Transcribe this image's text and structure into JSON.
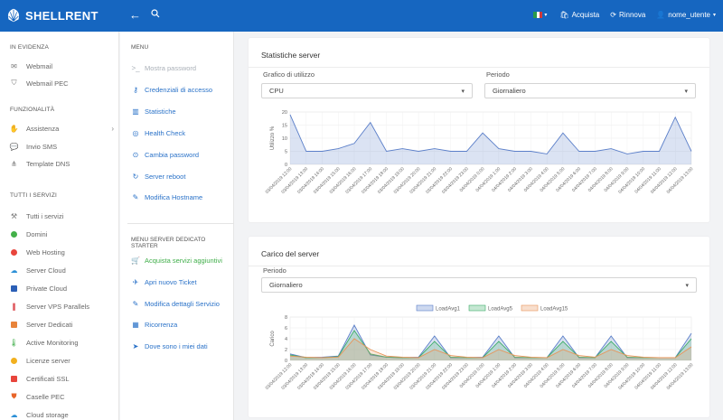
{
  "topbar": {
    "brand": "SHELLRENT",
    "back_icon": "arrow-left-icon",
    "search_icon": "search-icon",
    "language_flag": "italy-flag",
    "flag_colors": [
      "#2a9a4a",
      "#ffffff",
      "#d23a3a"
    ],
    "acquista": "Acquista",
    "rinnova": "Rinnova",
    "user": "nome_utente",
    "colors": {
      "bar": "#1666c0"
    }
  },
  "sidebar": {
    "sections": [
      {
        "title": "IN EVIDENZA",
        "items": [
          {
            "label": "Webmail",
            "icon": "mail-icon"
          },
          {
            "label": "Webmail PEC",
            "icon": "shield-icon"
          }
        ]
      },
      {
        "title": "FUNZIONALITÀ",
        "items": [
          {
            "label": "Assistenza",
            "icon": "handshake-icon",
            "has_submenu": true
          },
          {
            "label": "Invio SMS",
            "icon": "chat-icon"
          },
          {
            "label": "Template DNS",
            "icon": "sitemap-icon"
          }
        ]
      },
      {
        "title": "TUTTI I SERVIZI",
        "items": [
          {
            "label": "Tutti i servizi",
            "icon": "tools-icon"
          },
          {
            "label": "Domini",
            "icon": "globe-icon",
            "color": "#43b049"
          },
          {
            "label": "Web Hosting",
            "icon": "hosting-icon",
            "color": "#e8453c"
          },
          {
            "label": "Server Cloud",
            "icon": "cloud-icon",
            "color": "#2b8fd6"
          },
          {
            "label": "Private Cloud",
            "icon": "windows-icon",
            "color": "#2b5fb6"
          },
          {
            "label": "Server VPS Parallels",
            "icon": "parallels-icon",
            "color": "#d5242b"
          },
          {
            "label": "Server Dedicati",
            "icon": "server-icon",
            "color": "#e8833a"
          },
          {
            "label": "Active Monitoring",
            "icon": "thermometer-icon",
            "color": "#3fae49"
          },
          {
            "label": "Licenze server",
            "icon": "license-icon",
            "color": "#f2b01e"
          },
          {
            "label": "Certificati SSL",
            "icon": "ssl-icon",
            "color": "#e8453c"
          },
          {
            "label": "Caselle PEC",
            "icon": "shield-pec-icon",
            "color": "#e8652a"
          },
          {
            "label": "Cloud storage",
            "icon": "storage-icon",
            "color": "#2b8fd6"
          }
        ]
      }
    ]
  },
  "menu": {
    "title": "MENU",
    "items": [
      {
        "label": "Mostra password",
        "icon": "terminal-icon",
        "state": "disabled"
      },
      {
        "label": "Credenziali di accesso",
        "icon": "key-icon"
      },
      {
        "label": "Statistiche",
        "icon": "chart-icon"
      },
      {
        "label": "Health Check",
        "icon": "support-icon"
      },
      {
        "label": "Cambia password",
        "icon": "lock-refresh-icon"
      },
      {
        "label": "Server reboot",
        "icon": "reboot-icon"
      },
      {
        "label": "Modifica Hostname",
        "icon": "edit-icon"
      }
    ],
    "section2_title": "MENU SERVER DEDICATO STARTER",
    "section2_items": [
      {
        "label": "Acquista servizi aggiuntivi",
        "icon": "cart-icon",
        "state": "green"
      },
      {
        "label": "Apri nuovo Ticket",
        "icon": "ticket-icon"
      },
      {
        "label": "Modifica dettagli Servizio",
        "icon": "edit-icon"
      },
      {
        "label": "Ricorrenza",
        "icon": "calendar-icon"
      },
      {
        "label": "Dove sono i miei dati",
        "icon": "location-icon"
      }
    ]
  },
  "stats_card": {
    "title": "Statistiche server",
    "graph_label": "Grafico di utilizzo",
    "graph_value": "CPU",
    "period_label": "Periodo",
    "period_value": "Giornaliero"
  },
  "load_card": {
    "title": "Carico del server",
    "period_label": "Periodo",
    "period_value": "Giornaliero"
  },
  "chart_data": [
    {
      "type": "area",
      "ylabel": "Utilizzo %",
      "ylim": [
        0,
        20
      ],
      "yticks": [
        0,
        5,
        10,
        15,
        20
      ],
      "x": [
        "03/04/2019 12:00",
        "03/04/2019 13:00",
        "03/04/2019 14:00",
        "03/04/2019 15:00",
        "03/04/2019 16:00",
        "03/04/2019 17:00",
        "03/04/2019 18:00",
        "03/04/2019 19:00",
        "03/04/2019 20:00",
        "03/04/2019 21:00",
        "03/04/2019 22:00",
        "03/04/2019 23:00",
        "04/04/2019 0:00",
        "04/04/2019 1:00",
        "04/04/2019 2:00",
        "04/04/2019 3:00",
        "04/04/2019 4:00",
        "04/04/2019 5:00",
        "04/04/2019 6:00",
        "04/04/2019 7:00",
        "04/04/2019 8:00",
        "04/04/2019 9:00",
        "04/04/2019 10:00",
        "04/04/2019 11:00",
        "04/04/2019 12:00",
        "04/04/2019 13:00"
      ],
      "series": [
        {
          "values": [
            19,
            5,
            5,
            6,
            8,
            16,
            5,
            6,
            5,
            6,
            5,
            5,
            12,
            6,
            5,
            5,
            4,
            12,
            5,
            5,
            6,
            4,
            5,
            5,
            18,
            5
          ],
          "color": "#5b7fc9"
        }
      ]
    },
    {
      "type": "area",
      "ylabel": "Carico",
      "ylim": [
        0,
        8
      ],
      "yticks": [
        0,
        2,
        4,
        6,
        8
      ],
      "legend": "top",
      "x": [
        "03/04/2019 12:00",
        "03/04/2019 13:00",
        "03/04/2019 14:00",
        "03/04/2019 15:00",
        "03/04/2019 16:00",
        "03/04/2019 17:00",
        "03/04/2019 18:00",
        "03/04/2019 19:00",
        "03/04/2019 20:00",
        "03/04/2019 21:00",
        "03/04/2019 22:00",
        "03/04/2019 23:00",
        "04/04/2019 0:00",
        "04/04/2019 1:00",
        "04/04/2019 2:00",
        "04/04/2019 3:00",
        "04/04/2019 4:00",
        "04/04/2019 5:00",
        "04/04/2019 6:00",
        "04/04/2019 7:00",
        "04/04/2019 8:00",
        "04/04/2019 9:00",
        "04/04/2019 10:00",
        "04/04/2019 11:00",
        "04/04/2019 12:00",
        "04/04/2019 13:00"
      ],
      "series": [
        {
          "name": "LoadAvg1",
          "values": [
            1.2,
            0.5,
            0.6,
            0.8,
            6.5,
            1.0,
            0.6,
            0.5,
            0.6,
            4.5,
            0.5,
            0.5,
            0.6,
            4.5,
            0.5,
            0.5,
            0.5,
            4.5,
            0.5,
            0.5,
            4.5,
            0.5,
            0.5,
            0.5,
            0.5,
            5.0
          ],
          "color": "#5b7fc9"
        },
        {
          "name": "LoadAvg5",
          "values": [
            1.0,
            0.5,
            0.5,
            0.7,
            5.5,
            1.2,
            0.6,
            0.5,
            0.5,
            3.5,
            0.6,
            0.5,
            0.5,
            3.5,
            0.6,
            0.5,
            0.5,
            3.5,
            0.6,
            0.5,
            3.5,
            0.6,
            0.5,
            0.5,
            0.5,
            4.0
          ],
          "color": "#3fae6a"
        },
        {
          "name": "LoadAvg15",
          "values": [
            0.8,
            0.6,
            0.5,
            0.6,
            4.0,
            2.0,
            0.8,
            0.6,
            0.5,
            2.0,
            0.9,
            0.6,
            0.5,
            2.0,
            0.9,
            0.6,
            0.5,
            2.0,
            0.9,
            0.6,
            2.0,
            0.9,
            0.6,
            0.5,
            0.5,
            2.5
          ],
          "color": "#e8955a"
        }
      ]
    }
  ]
}
